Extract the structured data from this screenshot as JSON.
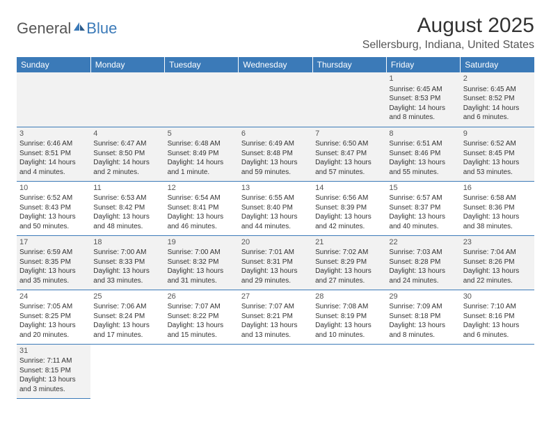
{
  "logo": {
    "text1": "General",
    "text2": "Blue"
  },
  "title": "August 2025",
  "location": "Sellersburg, Indiana, United States",
  "colors": {
    "header_bg": "#3b7ab8",
    "header_text": "#ffffff",
    "border": "#3b7ab8",
    "alt_row_bg": "#f2f2f2",
    "text": "#333333"
  },
  "weekdays": [
    "Sunday",
    "Monday",
    "Tuesday",
    "Wednesday",
    "Thursday",
    "Friday",
    "Saturday"
  ],
  "weeks": [
    [
      null,
      null,
      null,
      null,
      null,
      {
        "d": "1",
        "sr": "Sunrise: 6:45 AM",
        "ss": "Sunset: 8:53 PM",
        "dl": "Daylight: 14 hours and 8 minutes."
      },
      {
        "d": "2",
        "sr": "Sunrise: 6:45 AM",
        "ss": "Sunset: 8:52 PM",
        "dl": "Daylight: 14 hours and 6 minutes."
      }
    ],
    [
      {
        "d": "3",
        "sr": "Sunrise: 6:46 AM",
        "ss": "Sunset: 8:51 PM",
        "dl": "Daylight: 14 hours and 4 minutes."
      },
      {
        "d": "4",
        "sr": "Sunrise: 6:47 AM",
        "ss": "Sunset: 8:50 PM",
        "dl": "Daylight: 14 hours and 2 minutes."
      },
      {
        "d": "5",
        "sr": "Sunrise: 6:48 AM",
        "ss": "Sunset: 8:49 PM",
        "dl": "Daylight: 14 hours and 1 minute."
      },
      {
        "d": "6",
        "sr": "Sunrise: 6:49 AM",
        "ss": "Sunset: 8:48 PM",
        "dl": "Daylight: 13 hours and 59 minutes."
      },
      {
        "d": "7",
        "sr": "Sunrise: 6:50 AM",
        "ss": "Sunset: 8:47 PM",
        "dl": "Daylight: 13 hours and 57 minutes."
      },
      {
        "d": "8",
        "sr": "Sunrise: 6:51 AM",
        "ss": "Sunset: 8:46 PM",
        "dl": "Daylight: 13 hours and 55 minutes."
      },
      {
        "d": "9",
        "sr": "Sunrise: 6:52 AM",
        "ss": "Sunset: 8:45 PM",
        "dl": "Daylight: 13 hours and 53 minutes."
      }
    ],
    [
      {
        "d": "10",
        "sr": "Sunrise: 6:52 AM",
        "ss": "Sunset: 8:43 PM",
        "dl": "Daylight: 13 hours and 50 minutes."
      },
      {
        "d": "11",
        "sr": "Sunrise: 6:53 AM",
        "ss": "Sunset: 8:42 PM",
        "dl": "Daylight: 13 hours and 48 minutes."
      },
      {
        "d": "12",
        "sr": "Sunrise: 6:54 AM",
        "ss": "Sunset: 8:41 PM",
        "dl": "Daylight: 13 hours and 46 minutes."
      },
      {
        "d": "13",
        "sr": "Sunrise: 6:55 AM",
        "ss": "Sunset: 8:40 PM",
        "dl": "Daylight: 13 hours and 44 minutes."
      },
      {
        "d": "14",
        "sr": "Sunrise: 6:56 AM",
        "ss": "Sunset: 8:39 PM",
        "dl": "Daylight: 13 hours and 42 minutes."
      },
      {
        "d": "15",
        "sr": "Sunrise: 6:57 AM",
        "ss": "Sunset: 8:37 PM",
        "dl": "Daylight: 13 hours and 40 minutes."
      },
      {
        "d": "16",
        "sr": "Sunrise: 6:58 AM",
        "ss": "Sunset: 8:36 PM",
        "dl": "Daylight: 13 hours and 38 minutes."
      }
    ],
    [
      {
        "d": "17",
        "sr": "Sunrise: 6:59 AM",
        "ss": "Sunset: 8:35 PM",
        "dl": "Daylight: 13 hours and 35 minutes."
      },
      {
        "d": "18",
        "sr": "Sunrise: 7:00 AM",
        "ss": "Sunset: 8:33 PM",
        "dl": "Daylight: 13 hours and 33 minutes."
      },
      {
        "d": "19",
        "sr": "Sunrise: 7:00 AM",
        "ss": "Sunset: 8:32 PM",
        "dl": "Daylight: 13 hours and 31 minutes."
      },
      {
        "d": "20",
        "sr": "Sunrise: 7:01 AM",
        "ss": "Sunset: 8:31 PM",
        "dl": "Daylight: 13 hours and 29 minutes."
      },
      {
        "d": "21",
        "sr": "Sunrise: 7:02 AM",
        "ss": "Sunset: 8:29 PM",
        "dl": "Daylight: 13 hours and 27 minutes."
      },
      {
        "d": "22",
        "sr": "Sunrise: 7:03 AM",
        "ss": "Sunset: 8:28 PM",
        "dl": "Daylight: 13 hours and 24 minutes."
      },
      {
        "d": "23",
        "sr": "Sunrise: 7:04 AM",
        "ss": "Sunset: 8:26 PM",
        "dl": "Daylight: 13 hours and 22 minutes."
      }
    ],
    [
      {
        "d": "24",
        "sr": "Sunrise: 7:05 AM",
        "ss": "Sunset: 8:25 PM",
        "dl": "Daylight: 13 hours and 20 minutes."
      },
      {
        "d": "25",
        "sr": "Sunrise: 7:06 AM",
        "ss": "Sunset: 8:24 PM",
        "dl": "Daylight: 13 hours and 17 minutes."
      },
      {
        "d": "26",
        "sr": "Sunrise: 7:07 AM",
        "ss": "Sunset: 8:22 PM",
        "dl": "Daylight: 13 hours and 15 minutes."
      },
      {
        "d": "27",
        "sr": "Sunrise: 7:07 AM",
        "ss": "Sunset: 8:21 PM",
        "dl": "Daylight: 13 hours and 13 minutes."
      },
      {
        "d": "28",
        "sr": "Sunrise: 7:08 AM",
        "ss": "Sunset: 8:19 PM",
        "dl": "Daylight: 13 hours and 10 minutes."
      },
      {
        "d": "29",
        "sr": "Sunrise: 7:09 AM",
        "ss": "Sunset: 8:18 PM",
        "dl": "Daylight: 13 hours and 8 minutes."
      },
      {
        "d": "30",
        "sr": "Sunrise: 7:10 AM",
        "ss": "Sunset: 8:16 PM",
        "dl": "Daylight: 13 hours and 6 minutes."
      }
    ],
    [
      {
        "d": "31",
        "sr": "Sunrise: 7:11 AM",
        "ss": "Sunset: 8:15 PM",
        "dl": "Daylight: 13 hours and 3 minutes."
      },
      null,
      null,
      null,
      null,
      null,
      null
    ]
  ]
}
